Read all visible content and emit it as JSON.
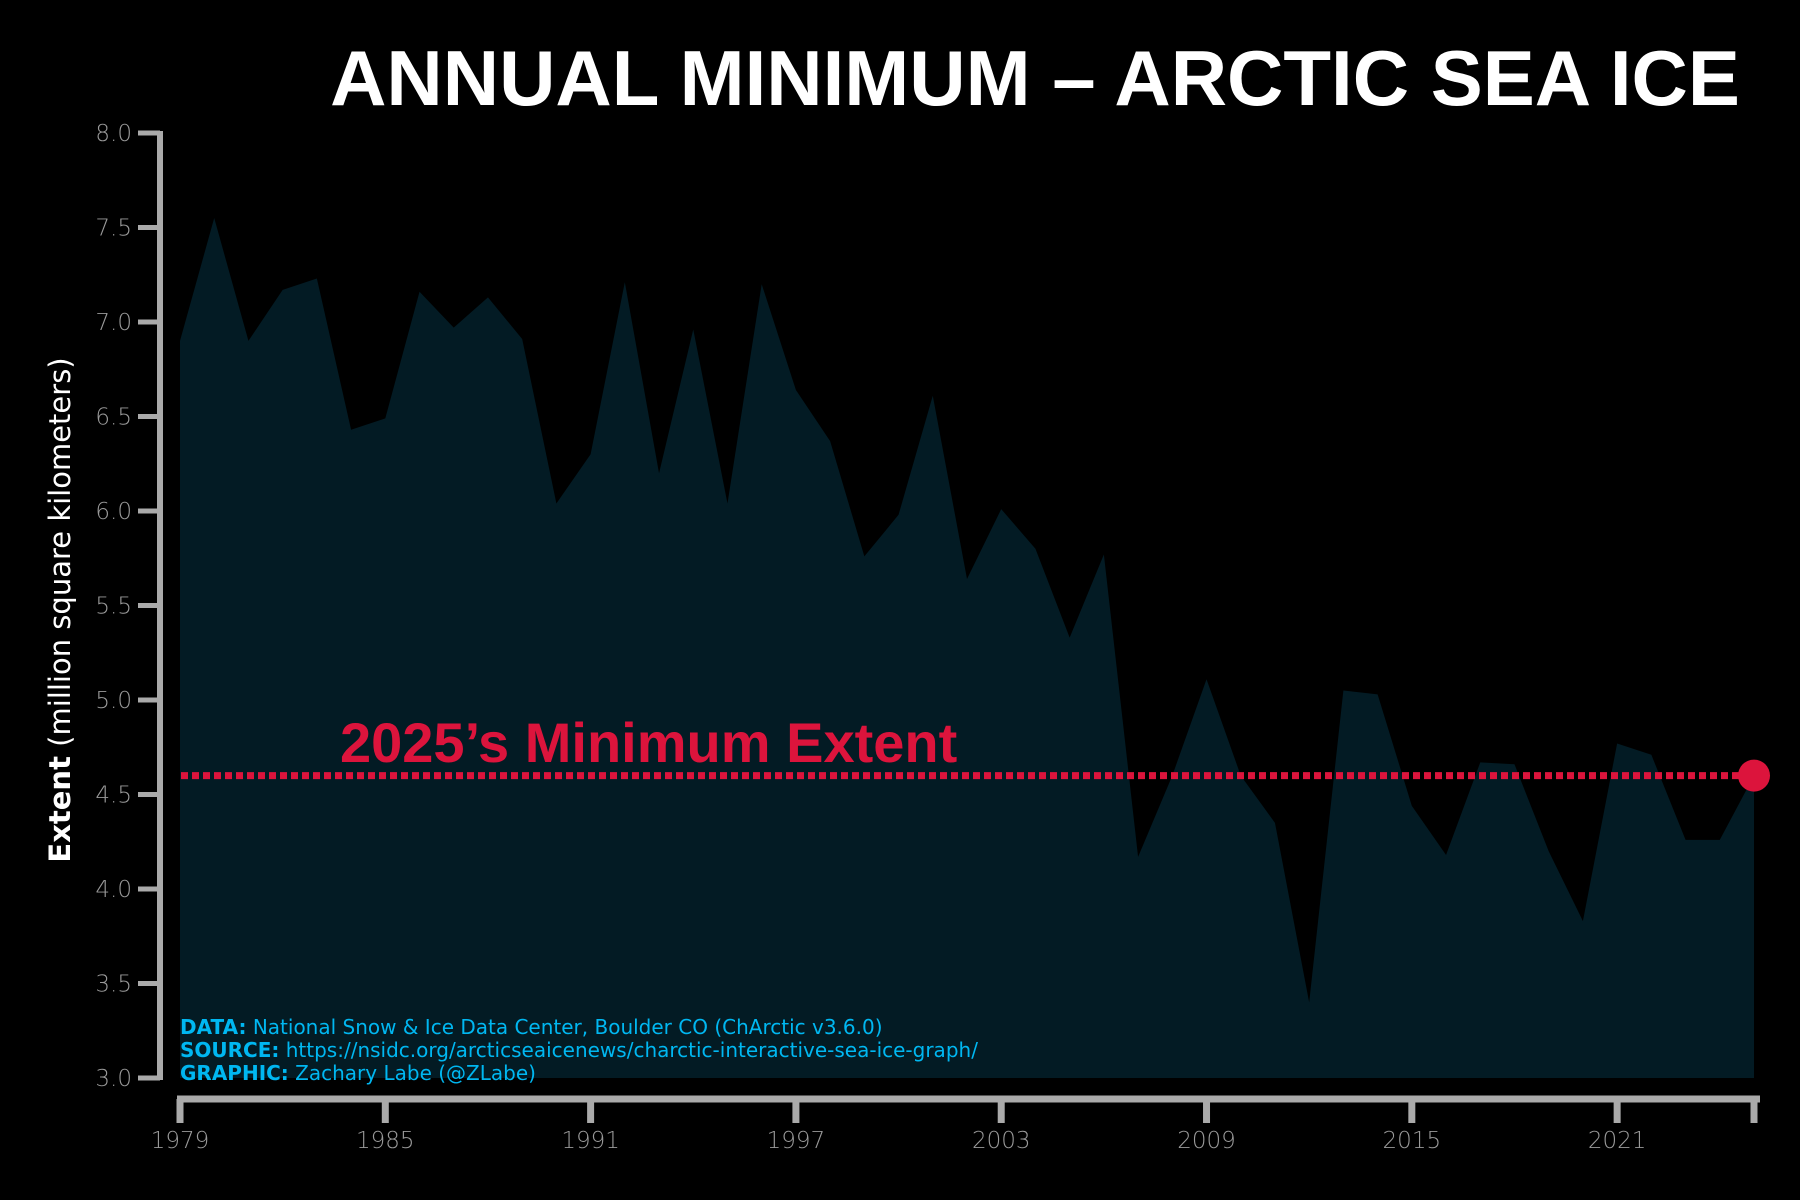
{
  "chart_data": {
    "type": "area",
    "title": "ANNUAL MINIMUM – ARCTIC SEA ICE",
    "ylabel_bold": "Extent",
    "ylabel_rest": " (million square kilometers)",
    "xlabel": "",
    "xlim": [
      1979,
      2025
    ],
    "ylim": [
      3.0,
      8.0
    ],
    "yticks": [
      "3.0",
      "3.5",
      "4.0",
      "4.5",
      "5.0",
      "5.5",
      "6.0",
      "6.5",
      "7.0",
      "7.5",
      "8.0"
    ],
    "xticks": [
      "1979",
      "1985",
      "1991",
      "1997",
      "2003",
      "2009",
      "2015",
      "2021"
    ],
    "grid": false,
    "x": [
      1979,
      1980,
      1981,
      1982,
      1983,
      1984,
      1985,
      1986,
      1987,
      1988,
      1989,
      1990,
      1991,
      1992,
      1993,
      1994,
      1995,
      1996,
      1997,
      1998,
      1999,
      2000,
      2001,
      2002,
      2003,
      2004,
      2005,
      2006,
      2007,
      2008,
      2009,
      2010,
      2011,
      2012,
      2013,
      2014,
      2015,
      2016,
      2017,
      2018,
      2019,
      2020,
      2021,
      2022,
      2023,
      2024,
      2025
    ],
    "values": [
      6.9,
      7.55,
      6.9,
      7.17,
      7.23,
      6.43,
      6.49,
      7.16,
      6.97,
      7.13,
      6.91,
      6.04,
      6.3,
      7.21,
      6.2,
      6.96,
      6.04,
      7.2,
      6.64,
      6.37,
      5.76,
      5.98,
      6.61,
      5.64,
      6.01,
      5.8,
      5.33,
      5.77,
      4.17,
      4.6,
      5.11,
      4.6,
      4.35,
      3.4,
      5.05,
      5.03,
      4.44,
      4.18,
      4.67,
      4.66,
      4.2,
      3.83,
      4.77,
      4.71,
      4.26,
      4.26,
      4.6
    ],
    "reference_line": {
      "value": 4.6,
      "label": "2025’s Minimum Extent"
    },
    "colors": {
      "fill": "#031b24",
      "highlight": "#dc143c",
      "axis": "#aaaaaa",
      "credit": "#00b7f1"
    }
  },
  "credits": [
    {
      "label": "DATA:",
      "text": " National Snow & Ice Data Center, Boulder CO (ChArctic v3.6.0)"
    },
    {
      "label": "SOURCE:",
      "text": " https://nsidc.org/arcticseaicenews/charctic-interactive-sea-ice-graph/"
    },
    {
      "label": "GRAPHIC:",
      "text": " Zachary Labe (@ZLabe)"
    }
  ]
}
